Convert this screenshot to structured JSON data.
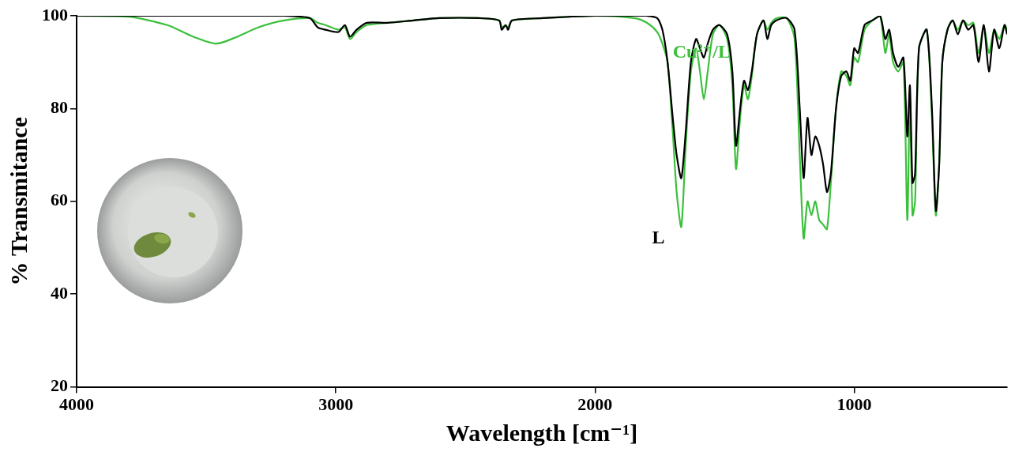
{
  "chart_data": {
    "type": "line",
    "x_label": "Wavelength [cm⁻¹]",
    "y_label": "% Transmitance",
    "xlim": [
      4000,
      410
    ],
    "xticks": [
      4000,
      3000,
      2000,
      1000
    ],
    "ylim": [
      20,
      100
    ],
    "yticks": [
      20,
      40,
      60,
      80,
      100
    ],
    "grid": false,
    "x": [
      4000,
      3800,
      3650,
      3550,
      3460,
      3380,
      3300,
      3200,
      3100,
      3070,
      3040,
      2990,
      2965,
      2945,
      2920,
      2880,
      2800,
      2700,
      2600,
      2450,
      2370,
      2360,
      2345,
      2335,
      2320,
      2200,
      2000,
      1850,
      1800,
      1760,
      1740,
      1720,
      1700,
      1685,
      1667,
      1650,
      1630,
      1610,
      1595,
      1580,
      1565,
      1545,
      1520,
      1490,
      1470,
      1456,
      1440,
      1425,
      1410,
      1395,
      1375,
      1350,
      1335,
      1320,
      1300,
      1260,
      1230,
      1210,
      1195,
      1180,
      1165,
      1150,
      1135,
      1120,
      1105,
      1090,
      1070,
      1050,
      1030,
      1015,
      1000,
      985,
      960,
      930,
      900,
      880,
      865,
      850,
      830,
      810,
      795,
      785,
      775,
      765,
      750,
      720,
      700,
      685,
      672,
      660,
      640,
      620,
      600,
      580,
      560,
      540,
      520,
      500,
      480,
      460,
      440,
      420,
      410
    ],
    "series": [
      {
        "name": "L",
        "color": "#000000",
        "values": [
          100,
          100,
          100,
          100,
          100,
          100,
          100,
          100,
          99.5,
          97.5,
          97,
          96.5,
          98,
          95.5,
          97,
          98.5,
          98.5,
          99,
          99.5,
          99.5,
          99,
          97,
          98,
          97,
          99,
          99.5,
          100,
          100,
          100,
          99.5,
          97,
          90,
          78,
          70,
          65,
          75,
          90,
          95,
          93,
          91,
          94,
          97,
          98,
          96,
          88,
          72,
          80,
          86,
          84,
          88,
          96,
          99,
          95,
          98,
          99,
          99.5,
          97,
          80,
          65,
          78,
          70,
          74,
          72,
          68,
          62,
          66,
          80,
          87,
          88,
          86,
          93,
          92,
          98,
          99,
          100,
          95,
          97,
          92,
          89,
          91,
          74,
          85,
          64,
          66,
          93,
          97,
          80,
          58,
          68,
          90,
          97,
          99,
          96,
          99,
          97,
          98,
          90,
          98,
          88,
          97,
          93,
          98,
          96
        ]
      },
      {
        "name": "Cu²⁺/L",
        "color": "#3cc03c",
        "values": [
          100,
          99.8,
          98,
          95.5,
          94,
          95.5,
          97.5,
          99,
          99.5,
          98.5,
          98,
          97,
          97.5,
          95,
          96.5,
          98,
          98.5,
          99,
          99.5,
          99.5,
          99,
          97.5,
          98,
          97.5,
          99,
          99.5,
          100,
          99.5,
          98.5,
          96.5,
          94,
          90,
          75,
          62,
          54.5,
          72,
          88,
          93,
          88,
          82,
          88,
          96,
          98,
          95,
          85,
          67,
          78,
          85,
          82,
          87,
          96,
          99,
          97,
          98.5,
          99.5,
          99.5,
          95,
          70,
          52,
          60,
          57,
          60,
          56,
          55,
          54,
          64,
          80,
          88,
          87,
          85,
          91,
          90,
          97,
          99,
          100,
          92,
          96,
          90,
          88,
          90,
          56,
          82,
          57,
          60,
          93,
          97,
          78,
          57,
          68,
          90,
          97,
          99,
          97,
          99,
          98,
          98.5,
          92,
          98,
          92,
          97,
          95,
          98,
          97
        ]
      }
    ],
    "annotations": [
      {
        "text": "Cu²⁺/L",
        "x": 1700,
        "y": 92
      },
      {
        "text": "L",
        "x": 1780,
        "y": 52
      }
    ]
  }
}
